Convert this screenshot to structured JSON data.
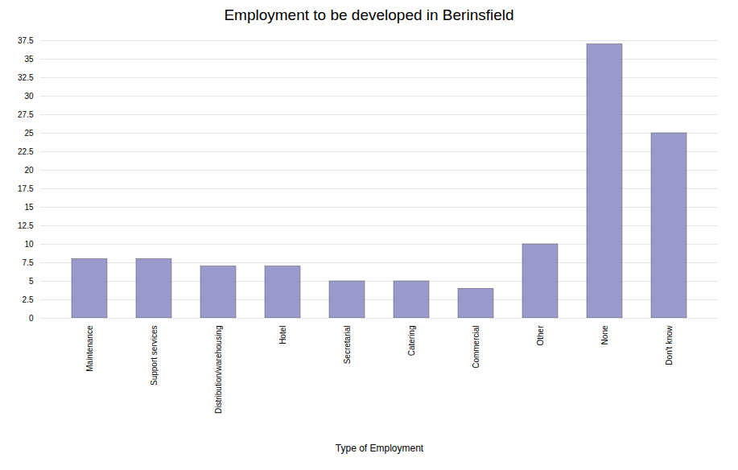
{
  "chart_data": {
    "type": "bar",
    "title": "Employment to be developed in Berinsfield",
    "xlabel": "Type of Employment",
    "categories": [
      "Maintenance",
      "Support services",
      "Distribution/warehousing",
      "Hotel",
      "Secretarial",
      "Catering",
      "Commercial",
      "Other",
      "None",
      "Don't know"
    ],
    "values": [
      8,
      8,
      7,
      7,
      5,
      5,
      4,
      10,
      37,
      25
    ],
    "color": "#9999cc",
    "ylim": [
      0,
      37.5
    ],
    "yticks": [
      0,
      2.5,
      5,
      7.5,
      10,
      12.5,
      15,
      17.5,
      20,
      22.5,
      25,
      27.5,
      30,
      32.5,
      35,
      37.5
    ],
    "grid": true
  }
}
